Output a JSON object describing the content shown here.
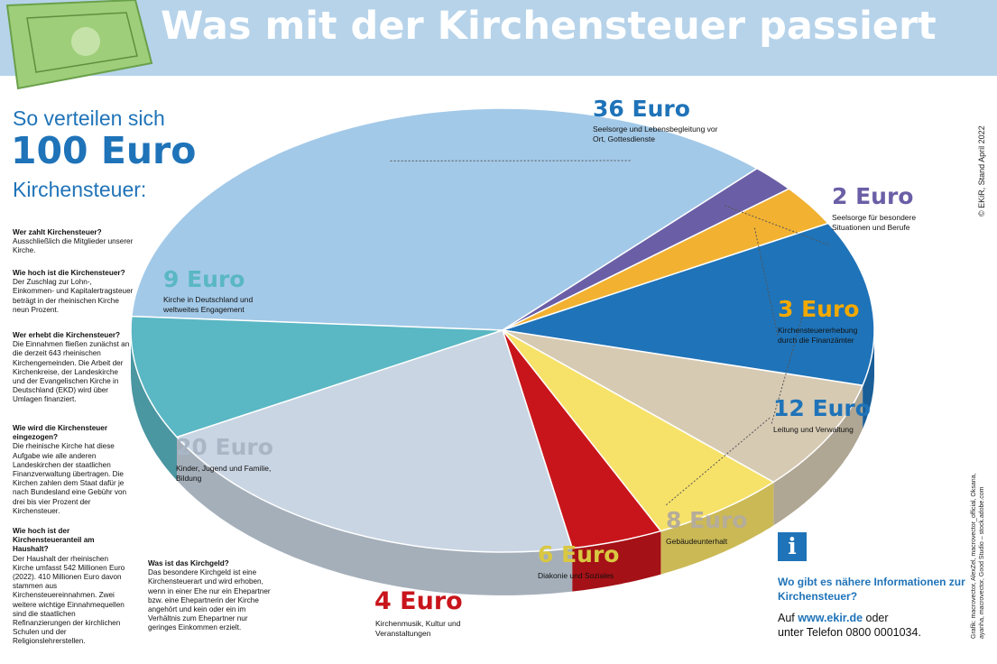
{
  "header": {
    "title": "Was mit der Kirchensteuer passiert"
  },
  "intro": {
    "line1": "So verteilen sich",
    "line2": "100 Euro",
    "line3": "Kirchensteuer:"
  },
  "faq": [
    {
      "q": "Wer zahlt Kirchensteuer?",
      "a": "Ausschließlich die Mitglieder unserer Kirche."
    },
    {
      "q": "Wie hoch ist die Kirchensteuer?",
      "a": "Der Zuschlag zur Lohn-, Einkommen- und Kapitalertragsteuer beträgt in der rheinischen Kirche neun Prozent."
    },
    {
      "q": "Wer erhebt die Kirchensteuer?",
      "a": "Die Einnahmen fließen zunächst an die derzeit 643 rheinischen Kirchengemeinden. Die Arbeit der Kirchenkreise, der Landeskirche und der Evangelischen Kirche in Deutschland (EKD) wird über Umlagen finanziert."
    },
    {
      "q": "Wie wird die Kirchensteuer eingezogen?",
      "a": "Die rheinische Kirche hat diese Aufgabe wie alle anderen Landeskirchen der staatlichen Finanzverwaltung übertragen. Die Kirchen zahlen dem Staat dafür je nach Bundesland eine Gebühr von drei bis vier Prozent der Kirchensteuer."
    },
    {
      "q": "Wie hoch ist der Kirchensteueranteil am Haushalt?",
      "a": "Der Haushalt der rheinischen Kirche umfasst 542 Millionen Euro (2022). 410 Millionen Euro davon stammen aus Kirchensteuereinnahmen. Zwei weitere wichtige Einnahmequellen sind die staatlichen Refinanzierungen der kirchlichen Schulen und der Religionslehrerstellen."
    },
    {
      "q": "Was ist das Kirchgeld?",
      "a": "Das besondere Kirchgeld ist eine Kirchensteuerart und wird erhoben, wenn in einer Ehe nur ein Ehepartner bzw. eine Ehepartnerin der Kirche angehört und kein oder ein im Verhältnis zum Ehepartner nur geringes Einkommen erzielt."
    }
  ],
  "chart_data": {
    "type": "pie",
    "title": "So verteilen sich 100 Euro Kirchensteuer:",
    "series": [
      {
        "label": "Seelsorge und Lebensbegleitung vor Ort, Gottesdienste",
        "amount": "36 Euro",
        "value": 36,
        "color": "#a3c9e8"
      },
      {
        "label": "Seelsorge für besondere Situationen und Berufe",
        "amount": "2 Euro",
        "value": 2,
        "color": "#6a5fa6"
      },
      {
        "label": "Kirchensteuererhebung durch die Finanzämter",
        "amount": "3 Euro",
        "value": 3,
        "color": "#f2b131"
      },
      {
        "label": "Leitung und Verwaltung",
        "amount": "12 Euro",
        "value": 12,
        "color": "#1f73b8"
      },
      {
        "label": "Gebäudeunterhalt",
        "amount": "8 Euro",
        "value": 8,
        "color": "#d6cab3"
      },
      {
        "label": "Diakonie und Soziales",
        "amount": "6 Euro",
        "value": 6,
        "color": "#f7e269"
      },
      {
        "label": "Kirchenmusik, Kultur und Veranstaltungen",
        "amount": "4 Euro",
        "value": 4,
        "color": "#c8151b"
      },
      {
        "label": "Kinder, Jugend und Familie, Bildung",
        "amount": "20 Euro",
        "value": 20,
        "color": "#c9d5e3"
      },
      {
        "label": "Kirche in Deutschland und weltweites Engagement",
        "amount": "9 Euro",
        "value": 9,
        "color": "#5ab7c4"
      }
    ]
  },
  "colors": {
    "amount_36": "#1f73b8",
    "amount_2": "#6a5fa6",
    "amount_3": "#f2a900",
    "amount_12": "#1f73b8",
    "amount_8": "#b5ac9a",
    "amount_6": "#d9c840",
    "amount_4": "#c8151b",
    "amount_20": "#a9b6c6",
    "amount_9": "#5ab7c4"
  },
  "info": {
    "icon": "i",
    "question": "Wo gibt es nähere Informationen zur Kirchensteuer?",
    "answer_prefix": "Auf",
    "link": "www.ekir.de",
    "answer_mid": "oder",
    "answer_phone": "unter Telefon 0800 0001034."
  },
  "copyright": "© EKiR, Stand April 2022",
  "credits": "Grafik: macrovector, AlexZel, macrovector_official, Oksana, ayanha, macrovector, Good Studio – stock.adobe.com"
}
